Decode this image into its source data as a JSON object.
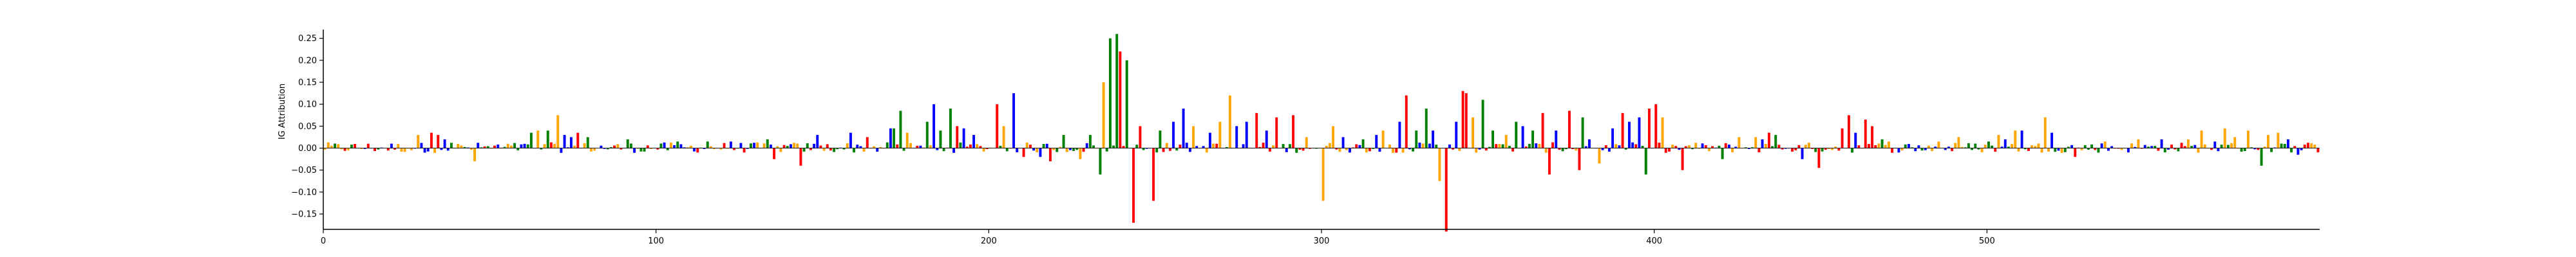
{
  "chart_data": {
    "type": "sequence-logo",
    "xlabel": "",
    "ylabel": "IG Attribution",
    "xlim": [
      0,
      600
    ],
    "ylim": [
      -0.185,
      0.27
    ],
    "xticks": [
      0,
      100,
      200,
      300,
      400,
      500
    ],
    "yticks": [
      -0.15,
      -0.1,
      -0.05,
      0.0,
      0.05,
      0.1,
      0.15,
      0.2,
      0.25
    ],
    "ytick_labels": [
      "−0.15",
      "−0.10",
      "−0.05",
      "0.00",
      "0.05",
      "0.10",
      "0.15",
      "0.20",
      "0.25"
    ],
    "grid": false,
    "base_colors": {
      "A": "#008000",
      "C": "#0000ff",
      "G": "#ffa500",
      "T": "#ff0000"
    },
    "peaks": [
      {
        "x": 28,
        "base": "G",
        "value": 0.03
      },
      {
        "x": 32,
        "base": "T",
        "value": 0.035
      },
      {
        "x": 34,
        "base": "T",
        "value": 0.03
      },
      {
        "x": 36,
        "base": "C",
        "value": 0.02
      },
      {
        "x": 38,
        "base": "A",
        "value": 0.012
      },
      {
        "x": 45,
        "base": "G",
        "value": -0.03
      },
      {
        "x": 62,
        "base": "A",
        "value": 0.035
      },
      {
        "x": 64,
        "base": "G",
        "value": 0.04
      },
      {
        "x": 67,
        "base": "A",
        "value": 0.04
      },
      {
        "x": 70,
        "base": "G",
        "value": 0.075
      },
      {
        "x": 72,
        "base": "C",
        "value": 0.03
      },
      {
        "x": 74,
        "base": "C",
        "value": 0.025
      },
      {
        "x": 76,
        "base": "T",
        "value": 0.035
      },
      {
        "x": 79,
        "base": "A",
        "value": 0.025
      },
      {
        "x": 91,
        "base": "A",
        "value": 0.02
      },
      {
        "x": 106,
        "base": "A",
        "value": 0.015
      },
      {
        "x": 115,
        "base": "A",
        "value": 0.015
      },
      {
        "x": 122,
        "base": "C",
        "value": 0.015
      },
      {
        "x": 133,
        "base": "A",
        "value": 0.02
      },
      {
        "x": 135,
        "base": "T",
        "value": -0.025
      },
      {
        "x": 143,
        "base": "T",
        "value": -0.04
      },
      {
        "x": 148,
        "base": "C",
        "value": 0.03
      },
      {
        "x": 158,
        "base": "C",
        "value": 0.035
      },
      {
        "x": 163,
        "base": "T",
        "value": 0.025
      },
      {
        "x": 170,
        "base": "C",
        "value": 0.045
      },
      {
        "x": 171,
        "base": "A",
        "value": 0.045
      },
      {
        "x": 173,
        "base": "A",
        "value": 0.085
      },
      {
        "x": 175,
        "base": "G",
        "value": 0.035
      },
      {
        "x": 181,
        "base": "A",
        "value": 0.06
      },
      {
        "x": 183,
        "base": "C",
        "value": 0.1
      },
      {
        "x": 185,
        "base": "A",
        "value": 0.04
      },
      {
        "x": 188,
        "base": "A",
        "value": 0.09
      },
      {
        "x": 190,
        "base": "T",
        "value": 0.05
      },
      {
        "x": 192,
        "base": "C",
        "value": 0.045
      },
      {
        "x": 195,
        "base": "C",
        "value": 0.03
      },
      {
        "x": 202,
        "base": "T",
        "value": 0.1
      },
      {
        "x": 204,
        "base": "G",
        "value": 0.05
      },
      {
        "x": 207,
        "base": "C",
        "value": 0.125
      },
      {
        "x": 210,
        "base": "T",
        "value": -0.02
      },
      {
        "x": 215,
        "base": "C",
        "value": -0.02
      },
      {
        "x": 218,
        "base": "T",
        "value": -0.03
      },
      {
        "x": 222,
        "base": "A",
        "value": 0.03
      },
      {
        "x": 227,
        "base": "G",
        "value": -0.025
      },
      {
        "x": 230,
        "base": "A",
        "value": 0.03
      },
      {
        "x": 233,
        "base": "A",
        "value": -0.06
      },
      {
        "x": 234,
        "base": "G",
        "value": 0.15
      },
      {
        "x": 236,
        "base": "A",
        "value": 0.25
      },
      {
        "x": 238,
        "base": "A",
        "value": 0.26
      },
      {
        "x": 239,
        "base": "T",
        "value": 0.22
      },
      {
        "x": 241,
        "base": "A",
        "value": 0.2
      },
      {
        "x": 243,
        "base": "T",
        "value": -0.17
      },
      {
        "x": 245,
        "base": "T",
        "value": 0.05
      },
      {
        "x": 249,
        "base": "T",
        "value": -0.12
      },
      {
        "x": 251,
        "base": "A",
        "value": 0.04
      },
      {
        "x": 255,
        "base": "C",
        "value": 0.06
      },
      {
        "x": 258,
        "base": "C",
        "value": 0.09
      },
      {
        "x": 261,
        "base": "G",
        "value": 0.05
      },
      {
        "x": 266,
        "base": "C",
        "value": 0.035
      },
      {
        "x": 269,
        "base": "G",
        "value": 0.06
      },
      {
        "x": 272,
        "base": "G",
        "value": 0.12
      },
      {
        "x": 274,
        "base": "C",
        "value": 0.05
      },
      {
        "x": 277,
        "base": "C",
        "value": 0.06
      },
      {
        "x": 280,
        "base": "T",
        "value": 0.08
      },
      {
        "x": 283,
        "base": "C",
        "value": 0.04
      },
      {
        "x": 286,
        "base": "T",
        "value": 0.07
      },
      {
        "x": 291,
        "base": "T",
        "value": 0.075
      },
      {
        "x": 295,
        "base": "G",
        "value": 0.025
      },
      {
        "x": 300,
        "base": "G",
        "value": -0.12
      },
      {
        "x": 303,
        "base": "G",
        "value": 0.05
      },
      {
        "x": 306,
        "base": "C",
        "value": 0.025
      },
      {
        "x": 312,
        "base": "A",
        "value": 0.02
      },
      {
        "x": 316,
        "base": "C",
        "value": 0.03
      },
      {
        "x": 318,
        "base": "G",
        "value": 0.04
      },
      {
        "x": 323,
        "base": "C",
        "value": 0.06
      },
      {
        "x": 325,
        "base": "T",
        "value": 0.12
      },
      {
        "x": 328,
        "base": "A",
        "value": 0.04
      },
      {
        "x": 331,
        "base": "A",
        "value": 0.09
      },
      {
        "x": 333,
        "base": "C",
        "value": 0.04
      },
      {
        "x": 335,
        "base": "G",
        "value": -0.075
      },
      {
        "x": 337,
        "base": "T",
        "value": -0.19
      },
      {
        "x": 340,
        "base": "C",
        "value": 0.06
      },
      {
        "x": 342,
        "base": "T",
        "value": 0.13
      },
      {
        "x": 343,
        "base": "T",
        "value": 0.125
      },
      {
        "x": 345,
        "base": "G",
        "value": 0.07
      },
      {
        "x": 348,
        "base": "A",
        "value": 0.11
      },
      {
        "x": 351,
        "base": "A",
        "value": 0.04
      },
      {
        "x": 355,
        "base": "G",
        "value": 0.03
      },
      {
        "x": 358,
        "base": "A",
        "value": 0.06
      },
      {
        "x": 360,
        "base": "C",
        "value": 0.05
      },
      {
        "x": 363,
        "base": "A",
        "value": 0.04
      },
      {
        "x": 366,
        "base": "T",
        "value": 0.08
      },
      {
        "x": 368,
        "base": "T",
        "value": -0.06
      },
      {
        "x": 370,
        "base": "C",
        "value": 0.04
      },
      {
        "x": 374,
        "base": "T",
        "value": 0.085
      },
      {
        "x": 377,
        "base": "T",
        "value": -0.05
      },
      {
        "x": 378,
        "base": "A",
        "value": 0.07
      },
      {
        "x": 380,
        "base": "C",
        "value": 0.02
      },
      {
        "x": 383,
        "base": "G",
        "value": -0.035
      },
      {
        "x": 387,
        "base": "C",
        "value": 0.045
      },
      {
        "x": 390,
        "base": "T",
        "value": 0.08
      },
      {
        "x": 392,
        "base": "C",
        "value": 0.06
      },
      {
        "x": 395,
        "base": "C",
        "value": 0.07
      },
      {
        "x": 397,
        "base": "A",
        "value": -0.06
      },
      {
        "x": 398,
        "base": "T",
        "value": 0.09
      },
      {
        "x": 400,
        "base": "T",
        "value": 0.1
      },
      {
        "x": 402,
        "base": "G",
        "value": 0.07
      },
      {
        "x": 408,
        "base": "T",
        "value": -0.05
      },
      {
        "x": 420,
        "base": "A",
        "value": -0.025
      },
      {
        "x": 425,
        "base": "G",
        "value": 0.025
      },
      {
        "x": 430,
        "base": "G",
        "value": 0.025
      },
      {
        "x": 432,
        "base": "C",
        "value": 0.02
      },
      {
        "x": 434,
        "base": "T",
        "value": 0.035
      },
      {
        "x": 436,
        "base": "A",
        "value": 0.03
      },
      {
        "x": 444,
        "base": "C",
        "value": -0.025
      },
      {
        "x": 449,
        "base": "T",
        "value": -0.045
      },
      {
        "x": 456,
        "base": "T",
        "value": 0.045
      },
      {
        "x": 458,
        "base": "T",
        "value": 0.075
      },
      {
        "x": 460,
        "base": "C",
        "value": 0.035
      },
      {
        "x": 463,
        "base": "T",
        "value": 0.065
      },
      {
        "x": 465,
        "base": "T",
        "value": 0.05
      },
      {
        "x": 468,
        "base": "A",
        "value": 0.02
      },
      {
        "x": 470,
        "base": "G",
        "value": 0.015
      },
      {
        "x": 485,
        "base": "G",
        "value": 0.015
      },
      {
        "x": 491,
        "base": "G",
        "value": 0.025
      },
      {
        "x": 500,
        "base": "A",
        "value": 0.015
      },
      {
        "x": 503,
        "base": "G",
        "value": 0.03
      },
      {
        "x": 505,
        "base": "C",
        "value": 0.02
      },
      {
        "x": 508,
        "base": "G",
        "value": 0.04
      },
      {
        "x": 510,
        "base": "C",
        "value": 0.04
      },
      {
        "x": 517,
        "base": "G",
        "value": 0.07
      },
      {
        "x": 519,
        "base": "C",
        "value": 0.035
      },
      {
        "x": 526,
        "base": "T",
        "value": -0.02
      },
      {
        "x": 535,
        "base": "G",
        "value": 0.015
      },
      {
        "x": 545,
        "base": "G",
        "value": 0.02
      },
      {
        "x": 552,
        "base": "C",
        "value": 0.02
      },
      {
        "x": 560,
        "base": "G",
        "value": 0.02
      },
      {
        "x": 564,
        "base": "G",
        "value": 0.04
      },
      {
        "x": 568,
        "base": "C",
        "value": 0.015
      },
      {
        "x": 571,
        "base": "G",
        "value": 0.045
      },
      {
        "x": 574,
        "base": "G",
        "value": 0.025
      },
      {
        "x": 578,
        "base": "G",
        "value": 0.04
      },
      {
        "x": 582,
        "base": "A",
        "value": -0.04
      },
      {
        "x": 584,
        "base": "G",
        "value": 0.03
      },
      {
        "x": 587,
        "base": "G",
        "value": 0.035
      },
      {
        "x": 590,
        "base": "C",
        "value": 0.02
      },
      {
        "x": 593,
        "base": "C",
        "value": -0.015
      }
    ],
    "background_noise_max": 0.012,
    "sequence_length": 600
  }
}
